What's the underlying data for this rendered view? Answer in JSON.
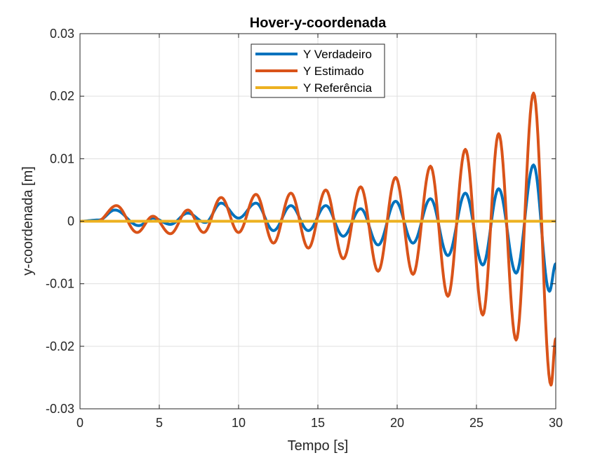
{
  "chart_data": {
    "type": "line",
    "title": "Hover-y-coordenada",
    "xlabel": "Tempo [s]",
    "ylabel": "y-coordenada [m]",
    "xlim": [
      0,
      30
    ],
    "ylim": [
      -0.03,
      0.03
    ],
    "xticks": [
      0,
      5,
      10,
      15,
      20,
      25,
      30
    ],
    "xtick_labels": [
      "0",
      "5",
      "10",
      "15",
      "20",
      "25",
      "30"
    ],
    "yticks": [
      -0.03,
      -0.02,
      -0.01,
      0,
      0.01,
      0.02,
      0.03
    ],
    "ytick_labels": [
      "-0.03",
      "-0.02",
      "-0.01",
      "0",
      "0.01",
      "0.02",
      "0.03"
    ],
    "grid": true,
    "legend_position": "top-center",
    "series": [
      {
        "name": "Y Verdadeiro",
        "color": "#0072BD",
        "x": [
          0,
          1.2,
          2.2,
          3.7,
          4.6,
          5.7,
          6.8,
          7.9,
          8.9,
          10.0,
          11.1,
          12.2,
          13.3,
          14.4,
          15.5,
          16.6,
          17.7,
          18.8,
          19.9,
          21.0,
          22.1,
          23.2,
          24.3,
          25.4,
          26.4,
          27.5,
          28.6,
          29.6,
          30.0
        ],
        "y": [
          0,
          0.0002,
          0.0018,
          -0.0007,
          0.0005,
          -0.0005,
          0.0013,
          -0.0002,
          0.0029,
          0.0005,
          0.0029,
          -0.0015,
          0.0025,
          -0.0015,
          0.0025,
          -0.0024,
          0.002,
          -0.0038,
          0.0032,
          -0.0035,
          0.0036,
          -0.0055,
          0.0045,
          -0.007,
          0.0052,
          -0.0083,
          0.009,
          -0.0112,
          -0.0068
        ]
      },
      {
        "name": "Y Estimado",
        "color": "#D95319",
        "x": [
          0,
          1.1,
          2.3,
          3.6,
          4.6,
          5.7,
          6.8,
          7.8,
          8.9,
          10.0,
          11.1,
          12.2,
          13.3,
          14.4,
          15.5,
          16.6,
          17.7,
          18.8,
          19.9,
          21.0,
          22.1,
          23.2,
          24.3,
          25.4,
          26.4,
          27.5,
          28.6,
          29.7,
          30.0
        ],
        "y": [
          0,
          0,
          0.0025,
          -0.0018,
          0.0008,
          -0.002,
          0.0018,
          -0.0018,
          0.0038,
          -0.0018,
          0.0043,
          -0.0035,
          0.0045,
          -0.0043,
          0.005,
          -0.006,
          0.0055,
          -0.008,
          0.007,
          -0.0085,
          0.0088,
          -0.012,
          0.0115,
          -0.015,
          0.014,
          -0.019,
          0.0205,
          -0.0262,
          -0.0188
        ]
      },
      {
        "name": "Y Referência",
        "color": "#EDB120",
        "x": [
          0,
          30
        ],
        "y": [
          0,
          0
        ]
      }
    ]
  }
}
